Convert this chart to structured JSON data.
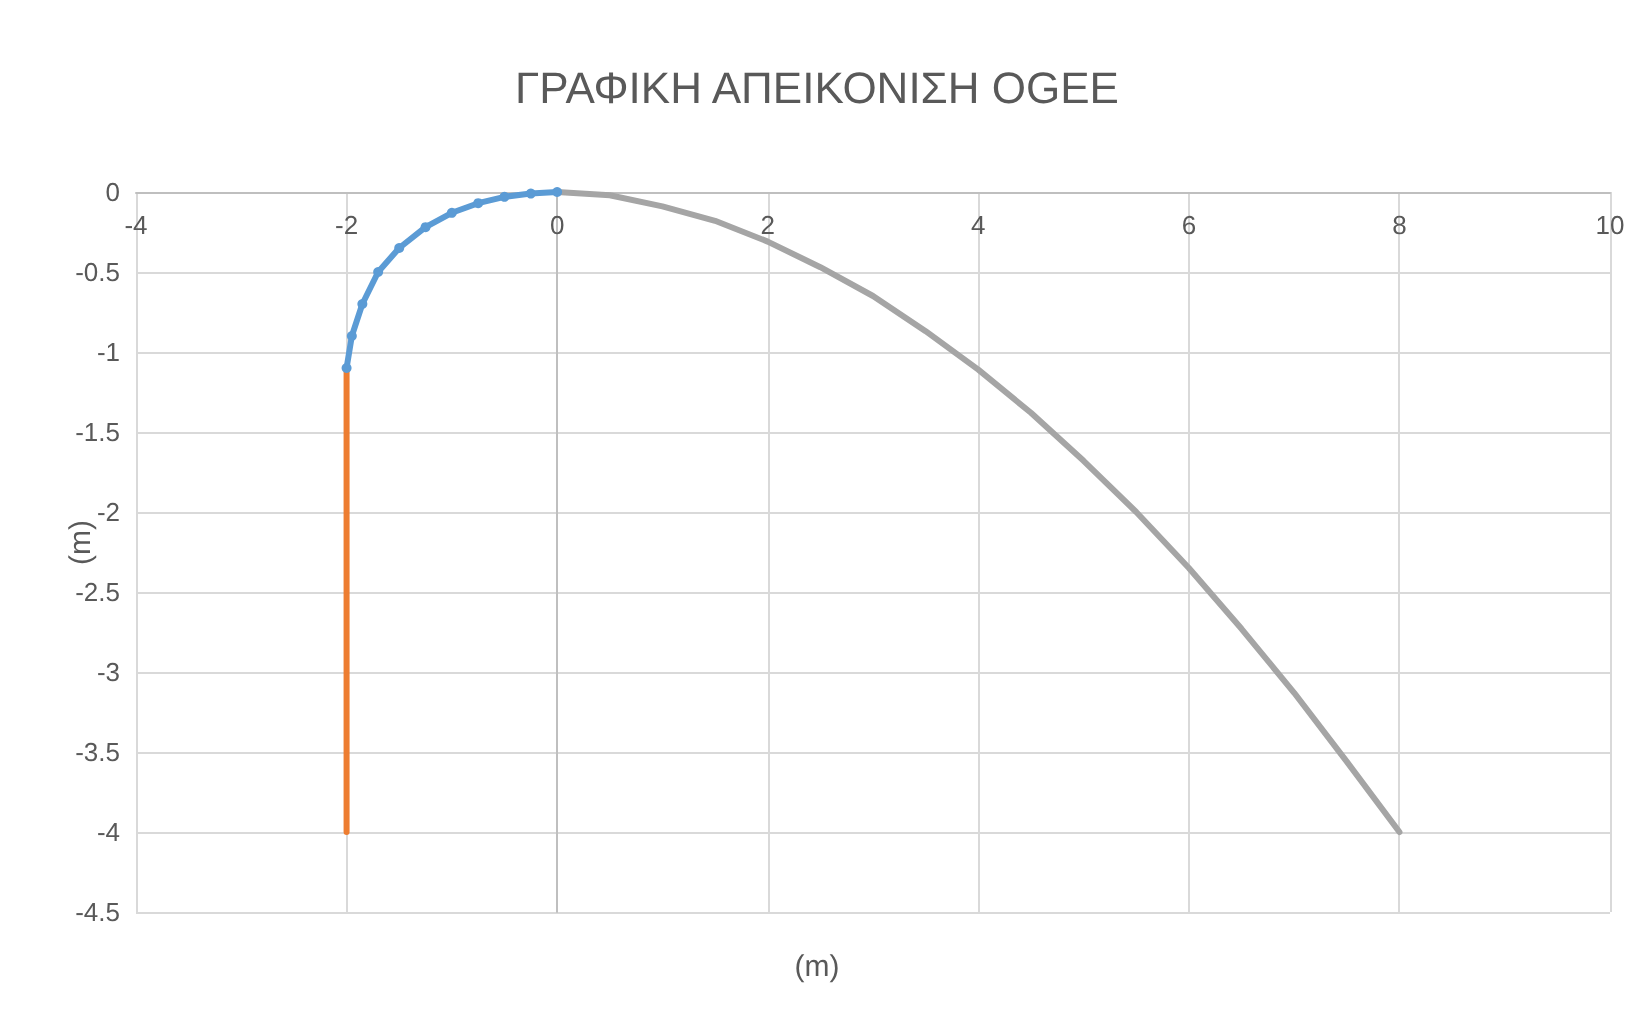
{
  "chart_data": {
    "type": "line",
    "title": "ΓΡΑΦΙΚΗ ΑΠΕΙΚΟΝΙΣΗ OGEE",
    "xlabel": "(m)",
    "ylabel": "(m)",
    "xlim": [
      -4,
      10
    ],
    "xticks": [
      -4,
      -2,
      0,
      2,
      4,
      6,
      8,
      10
    ],
    "ylim": [
      -4.5,
      0
    ],
    "yticks": [
      -4.5,
      -4,
      -3.5,
      -3,
      -2.5,
      -2,
      -1.5,
      -1,
      -0.5,
      0
    ],
    "grid": true,
    "line_style": "solid",
    "series": [
      {
        "color": "#5b9bd5",
        "marker": "circle",
        "x": [
          0,
          -0.25,
          -0.5,
          -0.75,
          -1,
          -1.25,
          -1.5,
          -1.7,
          -1.85,
          -1.95,
          -2
        ],
        "values": [
          0,
          -0.01,
          -0.03,
          -0.07,
          -0.13,
          -0.22,
          -0.35,
          -0.5,
          -0.7,
          -0.9,
          -1.1
        ]
      },
      {
        "color": "#ed7d31",
        "marker": "none",
        "x": [
          -2,
          -2
        ],
        "values": [
          -1.1,
          -4
        ]
      },
      {
        "color": "#a5a5a5",
        "marker": "none",
        "x": [
          0,
          0.5,
          1,
          1.5,
          2,
          2.5,
          3,
          3.5,
          4,
          4.5,
          5,
          5.5,
          6,
          6.5,
          7,
          7.5,
          8
        ],
        "values": [
          0,
          -0.02,
          -0.09,
          -0.18,
          -0.31,
          -0.47,
          -0.65,
          -0.87,
          -1.11,
          -1.38,
          -1.68,
          -2.0,
          -2.35,
          -2.73,
          -3.13,
          -3.56,
          -4.0
        ]
      }
    ]
  }
}
